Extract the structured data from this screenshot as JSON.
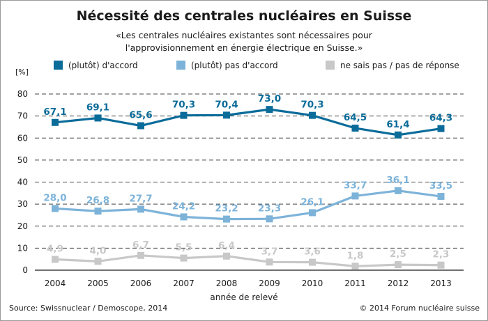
{
  "title": "Nécessité des centrales nucléaires en Suisse",
  "subtitle_line1": "«Les centrales nucléaires existantes sont nécessaires pour",
  "subtitle_line2": "l'approvisionnement en énergie électrique en Suisse.»",
  "source": "Source: Swissnuclear / Demoscope, 2014",
  "copyright": "© 2014 Forum nucléaire suisse",
  "chart_data": {
    "type": "line",
    "title": "Nécessité des centrales nucléaires en Suisse",
    "xlabel": "année de relevé",
    "ylabel": "[%]",
    "ylim": [
      0,
      80
    ],
    "yticks": [
      "0",
      "10",
      "20",
      "30",
      "40",
      "50",
      "60",
      "70",
      "80"
    ],
    "grid": "horizontal dashed",
    "legend_position": "top",
    "categories": [
      "2004",
      "2005",
      "2006",
      "2007",
      "2008",
      "2009",
      "2010",
      "2011",
      "2012",
      "2013"
    ],
    "series": [
      {
        "name": "(plutôt) d'accord",
        "color": "#0b6c9a",
        "values": [
          67.1,
          69.1,
          65.6,
          70.3,
          70.4,
          73.0,
          70.3,
          64.5,
          61.4,
          64.3
        ],
        "labels": [
          "67,1",
          "69,1",
          "65,6",
          "70,3",
          "70,4",
          "73,0",
          "70,3",
          "64,5",
          "61,4",
          "64,3"
        ]
      },
      {
        "name": "(plutôt) pas d'accord",
        "color": "#7db3d9",
        "values": [
          28.0,
          26.8,
          27.7,
          24.2,
          23.2,
          23.3,
          26.1,
          33.7,
          36.1,
          33.5
        ],
        "labels": [
          "28,0",
          "26,8",
          "27,7",
          "24,2",
          "23,2",
          "23,3",
          "26,1",
          "33,7",
          "36,1",
          "33,5"
        ]
      },
      {
        "name": "ne sais pas / pas de réponse",
        "color": "#c8c8c8",
        "values": [
          4.9,
          4.0,
          6.7,
          5.5,
          6.4,
          3.7,
          3.6,
          1.8,
          2.5,
          2.3
        ],
        "labels": [
          "4,9",
          "4,0",
          "6,7",
          "5,5",
          "6,4",
          "3,7",
          "3,6",
          "1,8",
          "2,5",
          "2,3"
        ]
      }
    ]
  }
}
